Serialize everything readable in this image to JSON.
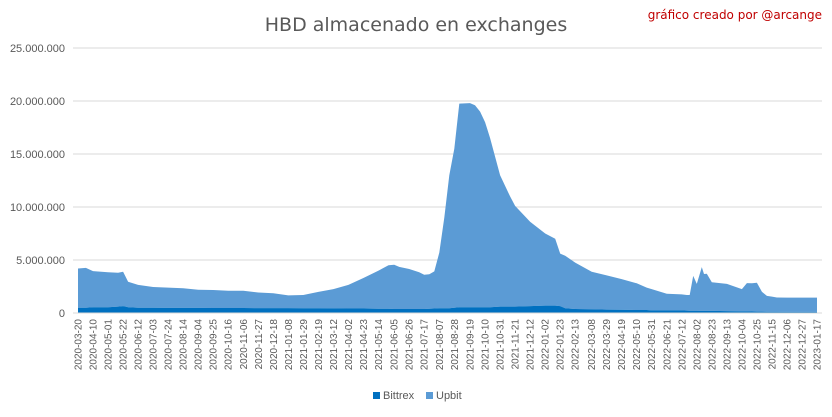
{
  "chart_data": {
    "type": "area",
    "stacked": true,
    "title": "HBD almacenado en exchanges",
    "credit": "gráfico creado por @arcange",
    "xlabel": "",
    "ylabel": "",
    "ylim": [
      0,
      25000000
    ],
    "yticks": [
      "0",
      "5.000.000",
      "10.000.000",
      "15.000.000",
      "20.000.000",
      "25.000.000"
    ],
    "ytick_values": [
      0,
      5000000,
      10000000,
      15000000,
      20000000,
      25000000
    ],
    "xticks": [
      "2020-03-20",
      "2020-04-10",
      "2020-05-01",
      "2020-05-22",
      "2020-06-12",
      "2020-07-03",
      "2020-07-24",
      "2020-08-14",
      "2020-09-04",
      "2020-09-25",
      "2020-10-16",
      "2020-11-06",
      "2020-11-27",
      "2020-12-18",
      "2021-01-08",
      "2021-01-29",
      "2021-02-19",
      "2021-03-12",
      "2021-04-02",
      "2021-04-23",
      "2021-05-14",
      "2021-06-05",
      "2021-06-26",
      "2021-07-17",
      "2021-08-07",
      "2021-08-28",
      "2021-09-19",
      "2021-10-10",
      "2021-10-31",
      "2021-11-21",
      "2021-12-12",
      "2022-01-02",
      "2022-01-23",
      "2022-02-13",
      "2022-03-08",
      "2022-03-29",
      "2022-04-19",
      "2022-05-10",
      "2022-05-31",
      "2022-06-21",
      "2022-07-12",
      "2022-08-02",
      "2022-08-23",
      "2022-09-13",
      "2022-10-04",
      "2022-10-25",
      "2022-11-15",
      "2022-12-06",
      "2022-12-27",
      "2023-01-17"
    ],
    "legend_position": "bottom",
    "gridlines": true,
    "x": [
      "2020-03-20",
      "2020-03-31",
      "2020-04-10",
      "2020-05-01",
      "2020-05-15",
      "2020-05-22",
      "2020-05-29",
      "2020-06-12",
      "2020-07-03",
      "2020-07-24",
      "2020-08-14",
      "2020-09-04",
      "2020-09-25",
      "2020-10-16",
      "2020-11-06",
      "2020-11-27",
      "2020-12-18",
      "2021-01-08",
      "2021-01-29",
      "2021-02-19",
      "2021-03-12",
      "2021-04-02",
      "2021-04-23",
      "2021-05-14",
      "2021-05-28",
      "2021-06-05",
      "2021-06-12",
      "2021-06-26",
      "2021-07-10",
      "2021-07-17",
      "2021-07-24",
      "2021-07-31",
      "2021-08-07",
      "2021-08-14",
      "2021-08-21",
      "2021-08-28",
      "2021-09-04",
      "2021-09-19",
      "2021-09-26",
      "2021-10-03",
      "2021-10-10",
      "2021-10-17",
      "2021-10-31",
      "2021-11-14",
      "2021-11-21",
      "2021-12-12",
      "2022-01-02",
      "2022-01-16",
      "2022-01-23",
      "2022-01-30",
      "2022-02-13",
      "2022-03-08",
      "2022-03-29",
      "2022-04-19",
      "2022-05-10",
      "2022-05-24",
      "2022-05-31",
      "2022-06-21",
      "2022-07-12",
      "2022-07-19",
      "2022-07-23",
      "2022-07-28",
      "2022-08-02",
      "2022-08-09",
      "2022-08-12",
      "2022-08-16",
      "2022-08-23",
      "2022-09-13",
      "2022-10-04",
      "2022-10-11",
      "2022-10-18",
      "2022-10-25",
      "2022-11-01",
      "2022-11-08",
      "2022-11-15",
      "2022-11-22",
      "2022-12-06",
      "2022-12-27",
      "2023-01-17"
    ],
    "series": [
      {
        "name": "Bittrex",
        "color": "#0070c0",
        "values": [
          500000,
          500000,
          550000,
          550000,
          600000,
          650000,
          550000,
          500000,
          500000,
          480000,
          480000,
          480000,
          470000,
          470000,
          470000,
          460000,
          460000,
          460000,
          450000,
          440000,
          430000,
          420000,
          420000,
          400000,
          400000,
          380000,
          380000,
          380000,
          380000,
          380000,
          400000,
          420000,
          450000,
          450000,
          450000,
          500000,
          550000,
          550000,
          550000,
          550000,
          550000,
          550000,
          600000,
          600000,
          600000,
          650000,
          700000,
          700000,
          650000,
          450000,
          380000,
          350000,
          320000,
          300000,
          280000,
          280000,
          250000,
          250000,
          250000,
          230000,
          220000,
          220000,
          220000,
          200000,
          200000,
          200000,
          200000,
          180000,
          150000,
          150000,
          140000,
          130000,
          130000,
          120000,
          110000,
          110000,
          100000,
          100000,
          100000
        ]
      },
      {
        "name": "Upbit",
        "color": "#5b9bd5",
        "values": [
          3700000,
          3750000,
          3400000,
          3300000,
          3200000,
          3250000,
          2400000,
          2150000,
          1950000,
          1920000,
          1850000,
          1720000,
          1700000,
          1630000,
          1630000,
          1470000,
          1400000,
          1200000,
          1250000,
          1550000,
          1820000,
          2230000,
          2880000,
          3600000,
          4100000,
          4170000,
          3970000,
          3770000,
          3470000,
          3220000,
          3250000,
          3500000,
          5250000,
          8550000,
          12550000,
          15000000,
          19200000,
          19250000,
          19050000,
          18450000,
          17450000,
          15950000,
          12400000,
          10400000,
          9500000,
          7950000,
          6800000,
          6300000,
          4950000,
          4950000,
          4370000,
          3550000,
          3230000,
          2900000,
          2520000,
          2120000,
          2000000,
          1570000,
          1500000,
          1470000,
          1480000,
          3280000,
          2530000,
          4130000,
          3480000,
          3500000,
          2700000,
          2570000,
          2100000,
          2670000,
          2670000,
          2720000,
          1870000,
          1490000,
          1440000,
          1350000,
          1350000,
          1350000,
          1350000
        ]
      }
    ]
  }
}
